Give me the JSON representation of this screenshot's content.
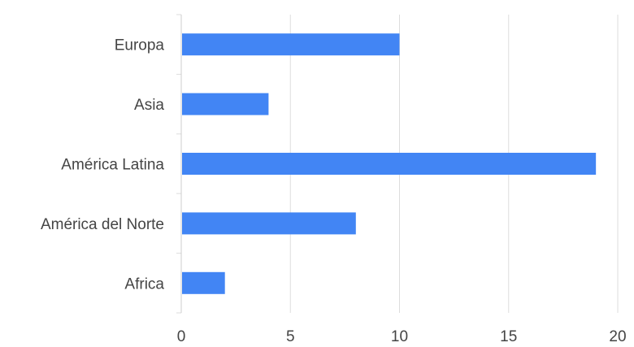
{
  "chart_data": {
    "type": "bar",
    "orientation": "horizontal",
    "categories": [
      "Europa",
      "Asia",
      "América Latina",
      "América del Norte",
      "Africa"
    ],
    "values": [
      10,
      4,
      19,
      8,
      2
    ],
    "x_ticks": [
      0,
      5,
      10,
      15,
      20
    ],
    "xlim": [
      0,
      20
    ],
    "title": "",
    "xlabel": "",
    "ylabel": "",
    "grid": "vertical",
    "legend": "none",
    "bar_color": "#4285f4"
  }
}
